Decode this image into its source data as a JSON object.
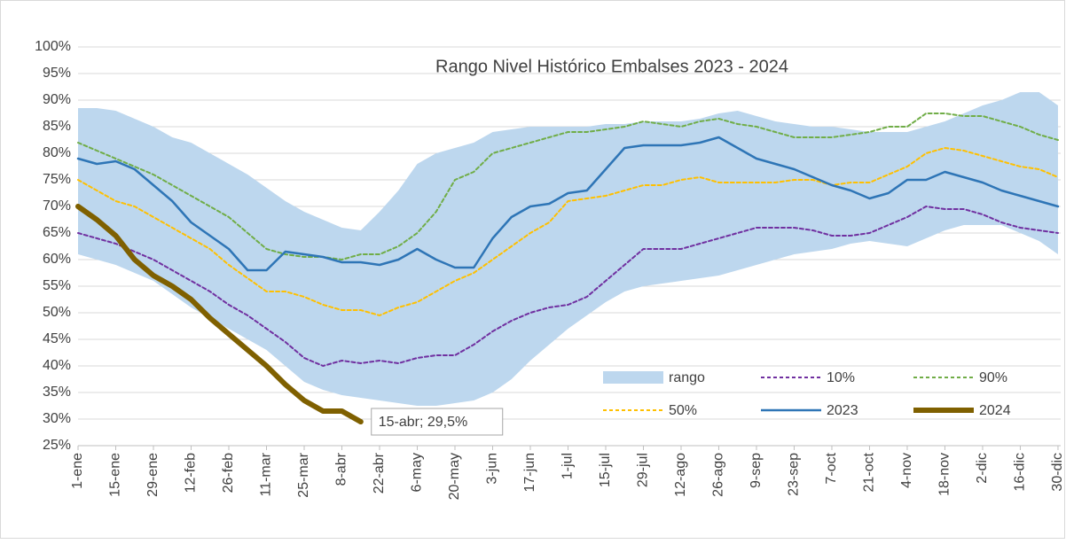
{
  "chart_data": {
    "type": "line",
    "title": "Rango Nivel Histórico Embalses 2023 - 2024",
    "x": [
      0,
      7,
      14,
      21,
      28,
      35,
      42,
      49,
      56,
      63,
      70,
      77,
      84,
      91,
      98,
      105,
      112,
      119,
      126,
      133,
      140,
      147,
      154,
      161,
      168,
      175,
      182,
      189,
      196,
      203,
      210,
      217,
      224,
      231,
      238,
      245,
      252,
      259,
      266,
      273,
      280,
      287,
      294,
      301,
      308,
      315,
      322,
      329,
      336,
      343,
      350,
      357,
      364
    ],
    "xlim": [
      0,
      365
    ],
    "xticks": [
      {
        "value": 0,
        "label": "1-ene"
      },
      {
        "value": 14,
        "label": "15-ene"
      },
      {
        "value": 28,
        "label": "29-ene"
      },
      {
        "value": 42,
        "label": "12-feb"
      },
      {
        "value": 56,
        "label": "26-feb"
      },
      {
        "value": 70,
        "label": "11-mar"
      },
      {
        "value": 84,
        "label": "25-mar"
      },
      {
        "value": 98,
        "label": "8-abr"
      },
      {
        "value": 112,
        "label": "22-abr"
      },
      {
        "value": 126,
        "label": "6-may"
      },
      {
        "value": 140,
        "label": "20-may"
      },
      {
        "value": 154,
        "label": "3-jun"
      },
      {
        "value": 168,
        "label": "17-jun"
      },
      {
        "value": 182,
        "label": "1-jul"
      },
      {
        "value": 196,
        "label": "15-jul"
      },
      {
        "value": 210,
        "label": "29-jul"
      },
      {
        "value": 224,
        "label": "12-ago"
      },
      {
        "value": 238,
        "label": "26-ago"
      },
      {
        "value": 252,
        "label": "9-sep"
      },
      {
        "value": 266,
        "label": "23-sep"
      },
      {
        "value": 280,
        "label": "7-oct"
      },
      {
        "value": 294,
        "label": "21-oct"
      },
      {
        "value": 308,
        "label": "4-nov"
      },
      {
        "value": 322,
        "label": "18-nov"
      },
      {
        "value": 336,
        "label": "2-dic"
      },
      {
        "value": 350,
        "label": "16-dic"
      },
      {
        "value": 364,
        "label": "30-dic"
      }
    ],
    "ylim": [
      25,
      100
    ],
    "yticks": [
      {
        "value": 25,
        "label": "25%"
      },
      {
        "value": 30,
        "label": "30%"
      },
      {
        "value": 35,
        "label": "35%"
      },
      {
        "value": 40,
        "label": "40%"
      },
      {
        "value": 45,
        "label": "45%"
      },
      {
        "value": 50,
        "label": "50%"
      },
      {
        "value": 55,
        "label": "55%"
      },
      {
        "value": 60,
        "label": "60%"
      },
      {
        "value": 65,
        "label": "65%"
      },
      {
        "value": 70,
        "label": "70%"
      },
      {
        "value": 75,
        "label": "75%"
      },
      {
        "value": 80,
        "label": "80%"
      },
      {
        "value": 85,
        "label": "85%"
      },
      {
        "value": 90,
        "label": "90%"
      },
      {
        "value": 95,
        "label": "95%"
      },
      {
        "value": 100,
        "label": "100%"
      }
    ],
    "grid": true,
    "legend": "lower right",
    "series": [
      {
        "name": "rango",
        "type": "band",
        "color": "#bdd7ee",
        "high": [
          88.5,
          88.5,
          88,
          86.5,
          85,
          83,
          82,
          80,
          78,
          76,
          73.5,
          71,
          69,
          67.5,
          66,
          65.5,
          69,
          73,
          78,
          80,
          81,
          82,
          84,
          84.5,
          85,
          85,
          85,
          85,
          85.5,
          85.5,
          86,
          86,
          86,
          86.5,
          87.5,
          88,
          87,
          86,
          85.5,
          85,
          85,
          84.5,
          84,
          84,
          84,
          85,
          86,
          87.5,
          89,
          90,
          91.5,
          91.5,
          89
        ],
        "low": [
          61,
          60,
          59,
          57.5,
          56,
          53.5,
          51,
          49,
          47,
          45,
          43,
          40,
          37,
          35.5,
          34.5,
          34,
          33.5,
          33,
          32.5,
          32.5,
          33,
          33.5,
          35,
          37.5,
          41,
          44,
          47,
          49.5,
          52,
          54,
          55,
          55.5,
          56,
          56.5,
          57,
          58,
          59,
          60,
          61,
          61.5,
          62,
          63,
          63.5,
          63,
          62.5,
          64,
          65.5,
          66.5,
          66.5,
          66.5,
          65,
          63.5,
          61
        ]
      },
      {
        "name": "10%",
        "color": "#7030a0",
        "dashed": true,
        "width": 2,
        "values": [
          65,
          64,
          63,
          61.5,
          60,
          58,
          56,
          54,
          51.5,
          49.5,
          47,
          44.5,
          41.5,
          40,
          41,
          40.5,
          41,
          40.5,
          41.5,
          42,
          42,
          44,
          46.5,
          48.5,
          50,
          51,
          51.5,
          53,
          56,
          59,
          62,
          62,
          62,
          63,
          64,
          65,
          66,
          66,
          66,
          65.5,
          64.5,
          64.5,
          65,
          66.5,
          68,
          70,
          69.5,
          69.5,
          68.5,
          67,
          66,
          65.5,
          65
        ]
      },
      {
        "name": "90%",
        "color": "#70ad47",
        "dashed": true,
        "width": 2,
        "values": [
          82,
          80.5,
          79,
          77.5,
          76,
          74,
          72,
          70,
          68,
          65,
          62,
          61,
          60.5,
          60.5,
          60,
          61,
          61,
          62.5,
          65,
          69,
          75,
          76.5,
          80,
          81,
          82,
          83,
          84,
          84,
          84.5,
          85,
          86,
          85.5,
          85,
          86,
          86.5,
          85.5,
          85,
          84,
          83,
          83,
          83,
          83.5,
          84,
          85,
          85,
          87.5,
          87.5,
          87,
          87,
          86,
          85,
          83.5,
          82.5
        ]
      },
      {
        "name": "50%",
        "color": "#ffc000",
        "dashed": true,
        "width": 2,
        "values": [
          75,
          73,
          71,
          70,
          68,
          66,
          64,
          62,
          59,
          56.5,
          54,
          54,
          53,
          51.5,
          50.5,
          50.5,
          49.5,
          51,
          52,
          54,
          56,
          57.5,
          60,
          62.5,
          65,
          67,
          71,
          71.5,
          72,
          73,
          74,
          74,
          75,
          75.5,
          74.5,
          74.5,
          74.5,
          74.5,
          75,
          75,
          74,
          74.5,
          74.5,
          76,
          77.5,
          80,
          81,
          80.5,
          79.5,
          78.5,
          77.5,
          77,
          75.5
        ]
      },
      {
        "name": "2023",
        "color": "#2e75b6",
        "dashed": false,
        "width": 2.5,
        "values": [
          79,
          78,
          78.5,
          77,
          74,
          71,
          67,
          64.5,
          62,
          58,
          58,
          61.5,
          61,
          60.5,
          59.5,
          59.5,
          59,
          60,
          62,
          60,
          58.5,
          58.5,
          64,
          68,
          70,
          70.5,
          72.5,
          73,
          77,
          81,
          81.5,
          81.5,
          81.5,
          82,
          83,
          81,
          79,
          78,
          77,
          75.5,
          74,
          73,
          71.5,
          72.5,
          75,
          75,
          76.5,
          75.5,
          74.5,
          73,
          72,
          71,
          70
        ]
      },
      {
        "name": "2024",
        "color": "#7f6000",
        "dashed": false,
        "width": 6,
        "values": [
          70,
          67.5,
          64.5,
          60,
          57,
          55,
          52.5,
          49,
          46,
          43,
          40,
          36.5,
          33.5,
          31.5,
          31.5,
          29.5,
          null,
          null,
          null,
          null,
          null,
          null,
          null,
          null,
          null,
          null,
          null,
          null,
          null,
          null,
          null,
          null,
          null,
          null,
          null,
          null,
          null,
          null,
          null,
          null,
          null,
          null,
          null,
          null,
          null,
          null,
          null,
          null,
          null,
          null,
          null,
          null,
          null
        ]
      }
    ],
    "annotation": {
      "text": "15-abr; 29,5%",
      "x": 105,
      "y": 29.5
    }
  }
}
